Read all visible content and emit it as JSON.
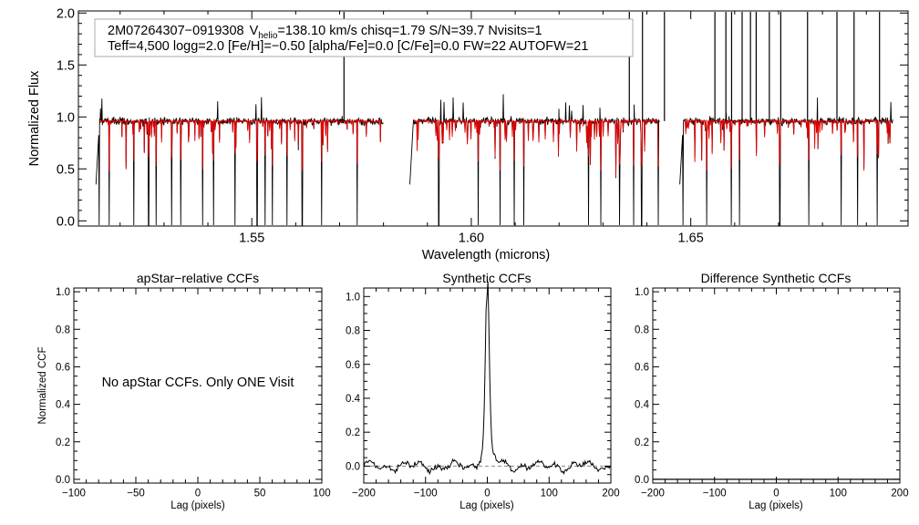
{
  "colors": {
    "observed": "#000000",
    "model": "#e00000",
    "axes": "#000000",
    "baseline": "#888888",
    "background": "#ffffff"
  },
  "chart_data": [
    {
      "id": "spectrum",
      "type": "line",
      "title": "",
      "xlabel": "Wavelength (microns)",
      "ylabel": "Normalized Flux",
      "xlim": [
        1.5105,
        1.6995
      ],
      "ylim": [
        -0.05,
        2.02
      ],
      "xticks": [
        1.55,
        1.6,
        1.65
      ],
      "xticklabels": [
        "1.55",
        "1.60",
        "1.65"
      ],
      "yticks": [
        0.0,
        0.5,
        1.0,
        1.5,
        2.0
      ],
      "yticklabels": [
        "0.0",
        "0.5",
        "1.0",
        "1.5",
        "2.0"
      ],
      "chips": [
        [
          1.5145,
          1.58
        ],
        [
          1.586,
          1.643
        ],
        [
          1.6475,
          1.696
        ]
      ],
      "continuum": 0.96,
      "deep_lines": [
        1.5152,
        1.5175,
        1.5231,
        1.5265,
        1.5282,
        1.5317,
        1.5338,
        1.5388,
        1.5413,
        1.5462,
        1.5512,
        1.553,
        1.5547,
        1.558,
        1.5615,
        1.5659,
        1.574,
        1.581,
        1.5926,
        1.6016,
        1.6066,
        1.6098,
        1.612,
        1.6267,
        1.6295,
        1.6338,
        1.637,
        1.6388,
        1.6426,
        1.6482,
        1.6536,
        1.6592,
        1.6611,
        1.6703,
        1.6769,
        1.6843,
        1.688,
        1.6925
      ],
      "emission_spikes": [
        1.571,
        1.636,
        1.639,
        1.644,
        1.6555,
        1.658,
        1.6593,
        1.6617,
        1.6636,
        1.6649,
        1.6679,
        1.6705,
        1.6766,
        1.6833,
        1.6872,
        1.693
      ],
      "annotation": {
        "line1": {
          "star": "2M07264307−0919308",
          "v_label": "V",
          "v_sub": "helio",
          "v_rest": "=138.10 km/s  chisq=1.79  S/N=39.7  Nvisits=1"
        },
        "line2": "Teff=4,500 logg=2.0 [Fe/H]=−0.50 [alpha/Fe]=0.0 [C/Fe]=0.0 FW=22 AUTOFW=21"
      },
      "series": [
        {
          "name": "observed spectrum",
          "color": "#000000"
        },
        {
          "name": "best-fit model",
          "color": "#e00000"
        }
      ]
    },
    {
      "id": "apstar-ccf",
      "type": "line",
      "title": "apStar−relative CCFs",
      "xlabel": "Lag (pixels)",
      "ylabel": "Normalized CCF",
      "xlim": [
        -100,
        100
      ],
      "ylim": [
        -0.02,
        1.02
      ],
      "xticks": [
        -100,
        -50,
        0,
        50,
        100
      ],
      "xticklabels": [
        "−100",
        "−50",
        "0",
        "50",
        "100"
      ],
      "yticks": [
        0.0,
        0.2,
        0.4,
        0.6,
        0.8,
        1.0
      ],
      "yticklabels": [
        "0.0",
        "0.2",
        "0.4",
        "0.6",
        "0.8",
        "1.0"
      ],
      "message": "No apStar CCFs.  Only ONE Visit",
      "series": []
    },
    {
      "id": "synthetic-ccf",
      "type": "line",
      "title": "Synthetic CCFs",
      "xlabel": "Lag (pixels)",
      "ylabel": "",
      "xlim": [
        -200,
        200
      ],
      "ylim": [
        -0.1,
        1.05
      ],
      "xticks": [
        -200,
        -100,
        0,
        100,
        200
      ],
      "xticklabels": [
        "−200",
        "−100",
        "0",
        "100",
        "200"
      ],
      "yticks": [
        0.0,
        0.2,
        0.4,
        0.6,
        0.8,
        1.0
      ],
      "yticklabels": [
        "0.0",
        "0.2",
        "0.4",
        "0.6",
        "0.8",
        "1.0"
      ],
      "baseline": 0.0,
      "peak": {
        "x": 0,
        "y": 1.0
      },
      "series": [
        {
          "name": "synthetic CCF",
          "color": "#000000"
        }
      ]
    },
    {
      "id": "difference-ccf",
      "type": "line",
      "title": "Difference Synthetic CCFs",
      "xlabel": "Lag (pixels)",
      "ylabel": "",
      "xlim": [
        -200,
        200
      ],
      "ylim": [
        -0.02,
        1.02
      ],
      "xticks": [
        -200,
        -100,
        0,
        100,
        200
      ],
      "xticklabels": [
        "−200",
        "−100",
        "0",
        "100",
        "200"
      ],
      "yticks": [
        0.0,
        0.2,
        0.4,
        0.6,
        0.8,
        1.0
      ],
      "yticklabels": [
        "0.0",
        "0.2",
        "0.4",
        "0.6",
        "0.8",
        "1.0"
      ],
      "series": [
        {
          "name": "difference CCF",
          "color": "#000000"
        }
      ]
    }
  ]
}
